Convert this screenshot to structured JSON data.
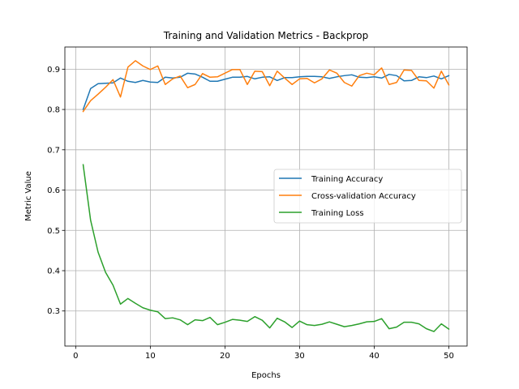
{
  "chart_data": {
    "type": "line",
    "title": "Training and Validation Metrics - Backprop",
    "xlabel": "Epochs",
    "ylabel": "Metric Value",
    "xlim": [
      -1.45,
      52.45
    ],
    "ylim": [
      0.213,
      0.955
    ],
    "xticks": [
      0,
      10,
      20,
      30,
      40,
      50
    ],
    "yticks": [
      0.3,
      0.4,
      0.5,
      0.6,
      0.7,
      0.8,
      0.9
    ],
    "ytick_labels": [
      "0.3",
      "0.4",
      "0.5",
      "0.6",
      "0.7",
      "0.8",
      "0.9"
    ],
    "grid": true,
    "legend_position": "center-right",
    "x": [
      1,
      2,
      3,
      4,
      5,
      6,
      7,
      8,
      9,
      10,
      11,
      12,
      13,
      14,
      15,
      16,
      17,
      18,
      19,
      20,
      21,
      22,
      23,
      24,
      25,
      26,
      27,
      28,
      29,
      30,
      31,
      32,
      33,
      34,
      35,
      36,
      37,
      38,
      39,
      40,
      41,
      42,
      43,
      44,
      45,
      46,
      47,
      48,
      49,
      50
    ],
    "series": [
      {
        "name": "Training Accuracy",
        "color": "#1f77b4",
        "values": [
          0.8,
          0.852,
          0.864,
          0.865,
          0.866,
          0.878,
          0.87,
          0.867,
          0.872,
          0.868,
          0.867,
          0.88,
          0.878,
          0.88,
          0.89,
          0.888,
          0.88,
          0.87,
          0.87,
          0.875,
          0.88,
          0.88,
          0.882,
          0.876,
          0.88,
          0.881,
          0.872,
          0.879,
          0.879,
          0.881,
          0.882,
          0.882,
          0.881,
          0.877,
          0.881,
          0.884,
          0.886,
          0.88,
          0.879,
          0.881,
          0.878,
          0.887,
          0.884,
          0.871,
          0.872,
          0.881,
          0.879,
          0.883,
          0.876,
          0.884
        ]
      },
      {
        "name": "Cross-validation Accuracy",
        "color": "#ff7f0e",
        "values": [
          0.795,
          0.822,
          0.838,
          0.855,
          0.874,
          0.831,
          0.905,
          0.921,
          0.908,
          0.899,
          0.908,
          0.862,
          0.876,
          0.883,
          0.854,
          0.862,
          0.889,
          0.88,
          0.881,
          0.89,
          0.899,
          0.899,
          0.862,
          0.895,
          0.894,
          0.859,
          0.895,
          0.878,
          0.862,
          0.876,
          0.877,
          0.866,
          0.876,
          0.898,
          0.89,
          0.867,
          0.858,
          0.884,
          0.89,
          0.886,
          0.903,
          0.862,
          0.867,
          0.898,
          0.897,
          0.872,
          0.871,
          0.853,
          0.895,
          0.861
        ]
      },
      {
        "name": "Training Loss",
        "color": "#2ca02c",
        "values": [
          0.663,
          0.525,
          0.446,
          0.396,
          0.364,
          0.317,
          0.331,
          0.319,
          0.308,
          0.302,
          0.298,
          0.281,
          0.283,
          0.278,
          0.266,
          0.278,
          0.276,
          0.284,
          0.266,
          0.272,
          0.279,
          0.277,
          0.274,
          0.286,
          0.277,
          0.258,
          0.282,
          0.273,
          0.259,
          0.275,
          0.266,
          0.264,
          0.267,
          0.273,
          0.267,
          0.261,
          0.264,
          0.268,
          0.273,
          0.274,
          0.281,
          0.256,
          0.26,
          0.272,
          0.272,
          0.268,
          0.256,
          0.249,
          0.268,
          0.255
        ]
      }
    ]
  }
}
